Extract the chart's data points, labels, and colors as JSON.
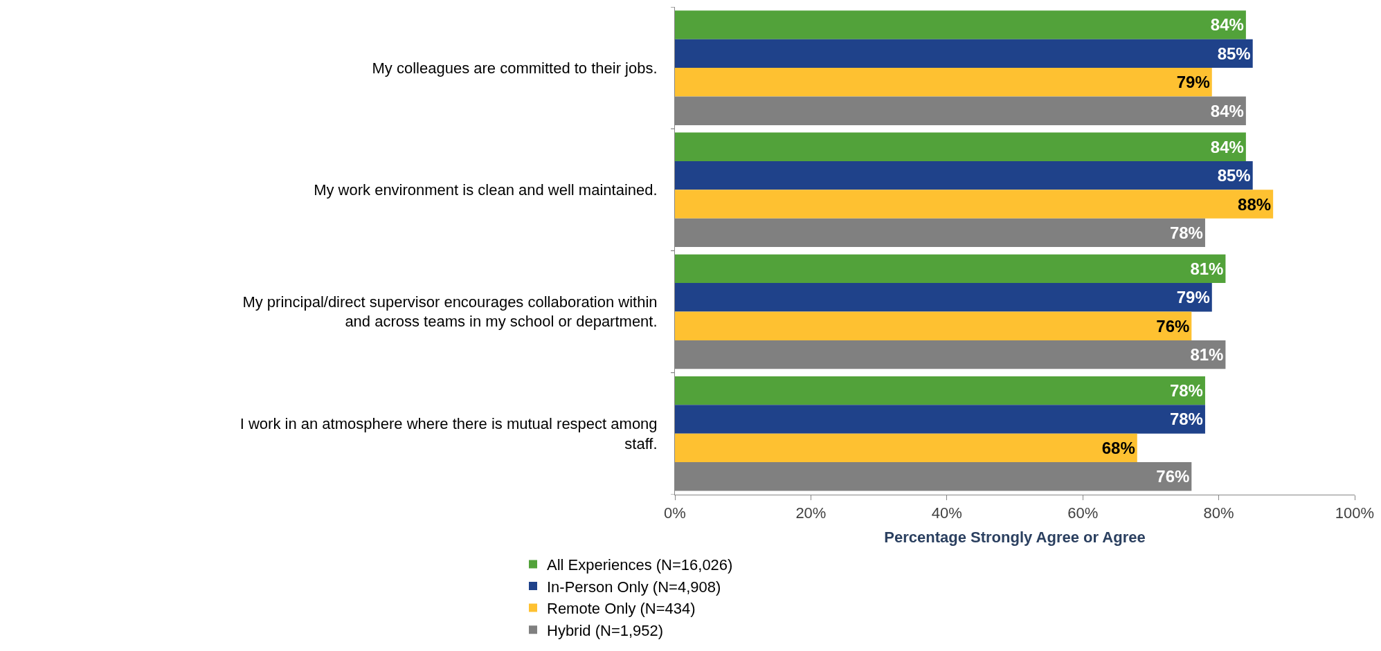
{
  "chart_data": {
    "type": "bar",
    "orientation": "horizontal",
    "categories": [
      "My colleagues are committed to their jobs.",
      "My work environment is clean and well maintained.",
      "My principal/direct supervisor encourages collaboration within and across teams in my school or department.",
      "I work in an atmosphere where there is mutual respect among staff."
    ],
    "series": [
      {
        "name": "All Experiences (N=16,026)",
        "color": "#52a23a",
        "values": [
          84,
          84,
          81,
          78
        ],
        "value_labels": [
          "84%",
          "84%",
          "81%",
          "78%"
        ]
      },
      {
        "name": "In-Person Only (N=4,908)",
        "color": "#1f428a",
        "values": [
          85,
          85,
          79,
          78
        ],
        "value_labels": [
          "85%",
          "85%",
          "79%",
          "78%"
        ]
      },
      {
        "name": "Remote Only (N=434)",
        "color": "#fec131",
        "values": [
          79,
          88,
          76,
          68
        ],
        "value_labels": [
          "79%",
          "88%",
          "76%",
          "68%"
        ]
      },
      {
        "name": "Hybrid (N=1,952)",
        "color": "#808080",
        "values": [
          84,
          78,
          81,
          76
        ],
        "value_labels": [
          "84%",
          "78%",
          "81%",
          "76%"
        ]
      }
    ],
    "xlabel": "Percentage Strongly Agree or Agree",
    "xlim": [
      0,
      100
    ],
    "xticks": [
      {
        "value": 0,
        "label": "0%"
      },
      {
        "value": 20,
        "label": "20%"
      },
      {
        "value": 40,
        "label": "40%"
      },
      {
        "value": 60,
        "label": "60%"
      },
      {
        "value": 80,
        "label": "80%"
      },
      {
        "value": 100,
        "label": "100%"
      }
    ],
    "legend": "bottom"
  }
}
